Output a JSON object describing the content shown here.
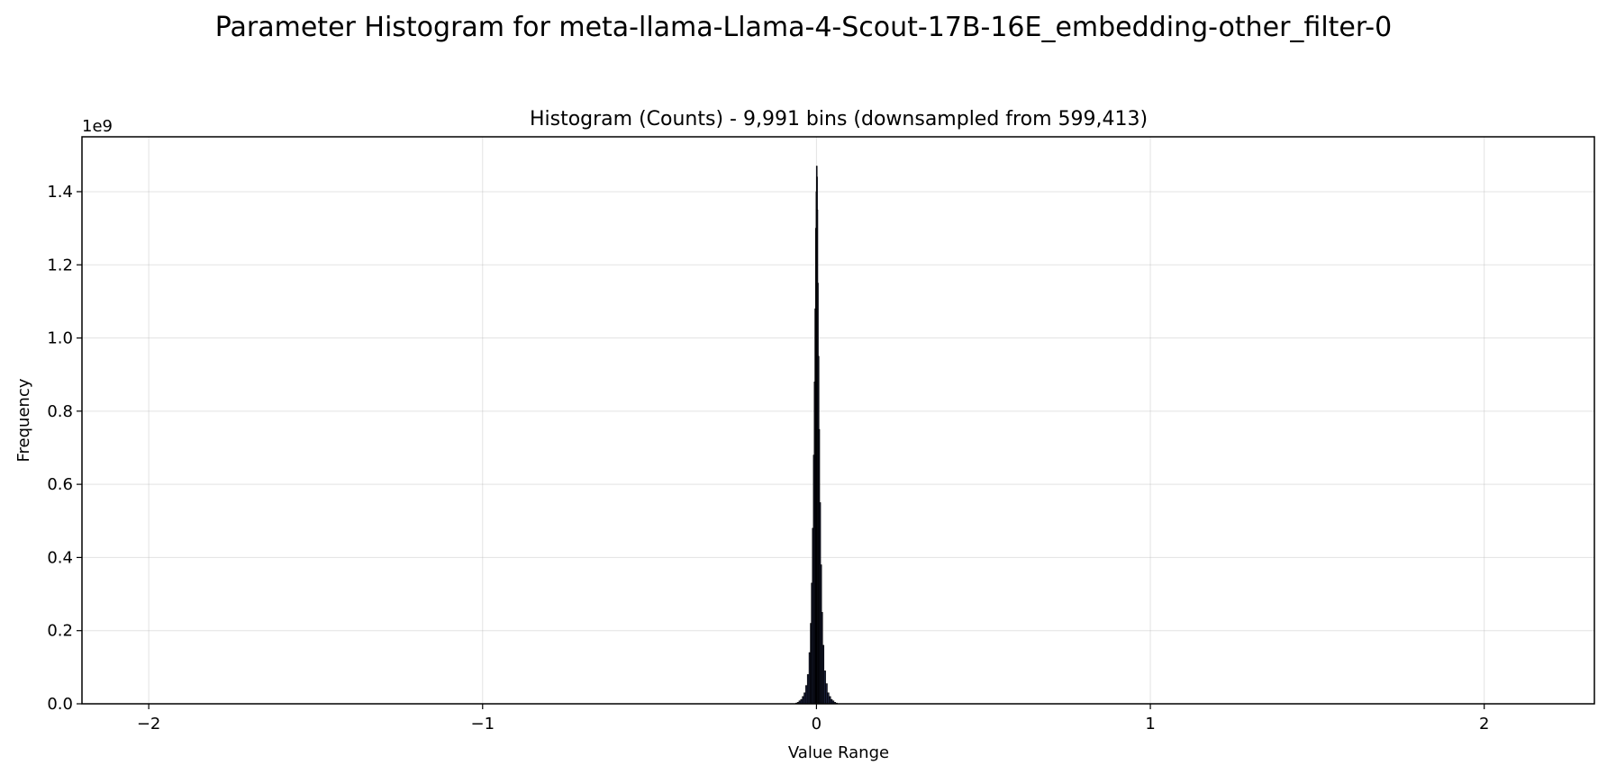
{
  "figure": {
    "suptitle": "Parameter Histogram for meta-llama-Llama-4-Scout-17B-16E_embedding-other_filter-0"
  },
  "chart_data": {
    "type": "histogram",
    "title": "Histogram (Counts) - 9,991 bins (downsampled from 599,413)",
    "xlabel": "Value Range",
    "ylabel": "Frequency",
    "y_offset_label": "1e9",
    "y_scale_multiplier": 1000000000,
    "xlim": [
      -2.2,
      2.33
    ],
    "ylim": [
      0,
      1.55
    ],
    "xticks": [
      -2,
      -1,
      0,
      1,
      2
    ],
    "xtick_labels": [
      "−2",
      "−1",
      "0",
      "1",
      "2"
    ],
    "yticks": [
      0.0,
      0.2,
      0.4,
      0.6,
      0.8,
      1.0,
      1.2,
      1.4
    ],
    "ytick_labels": [
      "0.0",
      "0.2",
      "0.4",
      "0.6",
      "0.8",
      "1.0",
      "1.2",
      "1.4"
    ],
    "grid": true,
    "bar_color": "#1a1f3a",
    "bar_edge_color": "#000000",
    "bins": [
      {
        "x": -0.06,
        "y": 0.002
      },
      {
        "x": -0.055,
        "y": 0.004
      },
      {
        "x": -0.05,
        "y": 0.008
      },
      {
        "x": -0.045,
        "y": 0.012
      },
      {
        "x": -0.04,
        "y": 0.02
      },
      {
        "x": -0.035,
        "y": 0.03
      },
      {
        "x": -0.03,
        "y": 0.05
      },
      {
        "x": -0.025,
        "y": 0.08
      },
      {
        "x": -0.02,
        "y": 0.14
      },
      {
        "x": -0.017,
        "y": 0.22
      },
      {
        "x": -0.014,
        "y": 0.33
      },
      {
        "x": -0.011,
        "y": 0.48
      },
      {
        "x": -0.008,
        "y": 0.68
      },
      {
        "x": -0.006,
        "y": 0.88
      },
      {
        "x": -0.004,
        "y": 1.08
      },
      {
        "x": -0.002,
        "y": 1.3
      },
      {
        "x": -0.001,
        "y": 1.4
      },
      {
        "x": 0.0,
        "y": 1.47
      },
      {
        "x": 0.001,
        "y": 1.44
      },
      {
        "x": 0.002,
        "y": 1.35
      },
      {
        "x": 0.004,
        "y": 1.15
      },
      {
        "x": 0.006,
        "y": 0.95
      },
      {
        "x": 0.008,
        "y": 0.75
      },
      {
        "x": 0.011,
        "y": 0.55
      },
      {
        "x": 0.014,
        "y": 0.38
      },
      {
        "x": 0.017,
        "y": 0.25
      },
      {
        "x": 0.02,
        "y": 0.16
      },
      {
        "x": 0.025,
        "y": 0.09
      },
      {
        "x": 0.03,
        "y": 0.055
      },
      {
        "x": 0.035,
        "y": 0.03
      },
      {
        "x": 0.04,
        "y": 0.02
      },
      {
        "x": 0.045,
        "y": 0.012
      },
      {
        "x": 0.05,
        "y": 0.008
      },
      {
        "x": 0.055,
        "y": 0.004
      },
      {
        "x": 0.06,
        "y": 0.002
      }
    ]
  }
}
